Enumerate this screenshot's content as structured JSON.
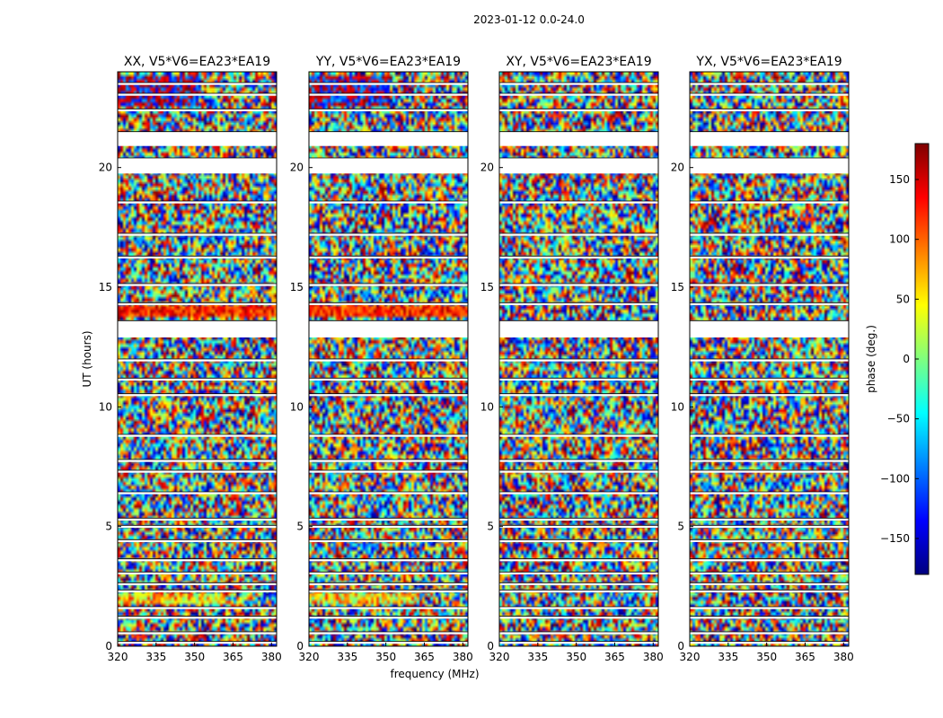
{
  "chart_data": {
    "type": "heatmap",
    "suptitle": "2023-01-12 0.0-24.0",
    "xlabel": "frequency (MHz)",
    "ylabel": "UT (hours)",
    "xlim": [
      320,
      382
    ],
    "ylim": [
      0,
      24
    ],
    "xticks": [
      320,
      335,
      350,
      365,
      380
    ],
    "yticks": [
      0,
      5,
      10,
      15,
      20
    ],
    "colorbar": {
      "label": "phase (deg.)",
      "range": [
        -180,
        180
      ],
      "ticks": [
        150,
        100,
        50,
        0,
        -50,
        -100,
        -150
      ],
      "tick_labels": [
        "150",
        "100",
        "50",
        "0",
        "−50",
        "−100",
        "−150"
      ],
      "colormap": "jet",
      "colors": [
        "#00007f",
        "#0000ff",
        "#007fff",
        "#00ffff",
        "#7fff7f",
        "#ffff00",
        "#ff7f00",
        "#ff0000",
        "#7f0000"
      ]
    },
    "panels": [
      {
        "title": "XX, V5*V6=EA23*EA19",
        "pol": "XX"
      },
      {
        "title": "YY, V5*V6=EA23*EA19",
        "pol": "YY"
      },
      {
        "title": "XY, V5*V6=EA23*EA19",
        "pol": "XY"
      },
      {
        "title": "YX, V5*V6=EA23*EA19",
        "pol": "YX"
      }
    ],
    "flagged_gaps_ut": [
      [
        0.1,
        0.2
      ],
      [
        0.5,
        0.6
      ],
      [
        1.15,
        1.25
      ],
      [
        1.55,
        1.65
      ],
      [
        2.25,
        2.35
      ],
      [
        2.55,
        2.65
      ],
      [
        3.0,
        3.1
      ],
      [
        3.55,
        3.65
      ],
      [
        4.35,
        4.45
      ],
      [
        4.95,
        5.05
      ],
      [
        5.25,
        5.35
      ],
      [
        6.35,
        6.45
      ],
      [
        7.25,
        7.35
      ],
      [
        7.7,
        7.8
      ],
      [
        8.75,
        8.85
      ],
      [
        10.45,
        10.55
      ],
      [
        11.1,
        11.2
      ],
      [
        11.9,
        12.0
      ],
      [
        12.9,
        13.6
      ],
      [
        14.25,
        14.35
      ],
      [
        15.05,
        15.15
      ],
      [
        16.2,
        16.3
      ],
      [
        17.15,
        17.25
      ],
      [
        18.5,
        18.6
      ],
      [
        19.75,
        20.4
      ],
      [
        20.9,
        21.5
      ],
      [
        22.35,
        22.45
      ],
      [
        23.0,
        23.1
      ],
      [
        23.45,
        23.55
      ]
    ]
  }
}
